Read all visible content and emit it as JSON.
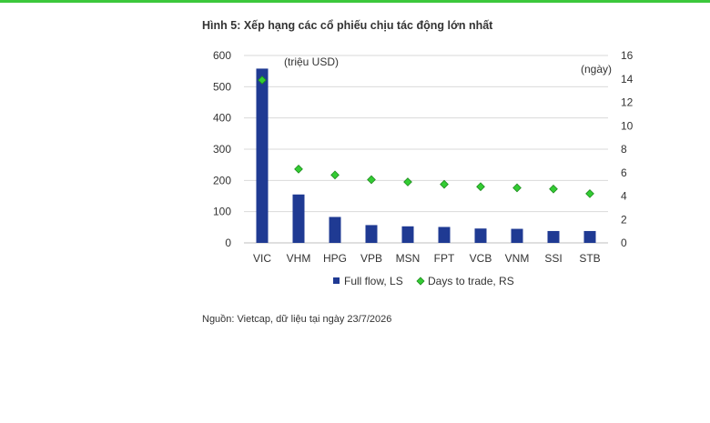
{
  "figure": {
    "title": "Hình 5: Xếp hạng các cổ phiếu chịu tác động lớn nhất",
    "source": "Nguồn: Vietcap, dữ liệu tại ngày 23/7/2026"
  },
  "chart_data": {
    "type": "bar",
    "categories": [
      "VIC",
      "VHM",
      "HPG",
      "VPB",
      "MSN",
      "FPT",
      "VCB",
      "VNM",
      "SSI",
      "STB"
    ],
    "left_axis_unit": "(triệu USD)",
    "right_axis_unit": "(ngày)",
    "ylim_left": [
      0,
      600
    ],
    "yticks_left": [
      0,
      100,
      200,
      300,
      400,
      500,
      600
    ],
    "ylim_right": [
      0,
      16
    ],
    "yticks_right": [
      0,
      2,
      4,
      6,
      8,
      10,
      12,
      14,
      16
    ],
    "grid": true,
    "legend_position": "bottom",
    "series": [
      {
        "name": "Full flow, LS",
        "kind": "bar",
        "axis": "left",
        "color": "#1f3a93",
        "values": [
          558,
          155,
          83,
          57,
          53,
          51,
          46,
          45,
          38,
          38
        ]
      },
      {
        "name": "Days to trade, RS",
        "kind": "scatter",
        "axis": "right",
        "color": "#33cc33",
        "values": [
          13.9,
          6.3,
          5.8,
          5.4,
          5.2,
          5.0,
          4.8,
          4.7,
          4.6,
          4.2
        ]
      }
    ]
  }
}
